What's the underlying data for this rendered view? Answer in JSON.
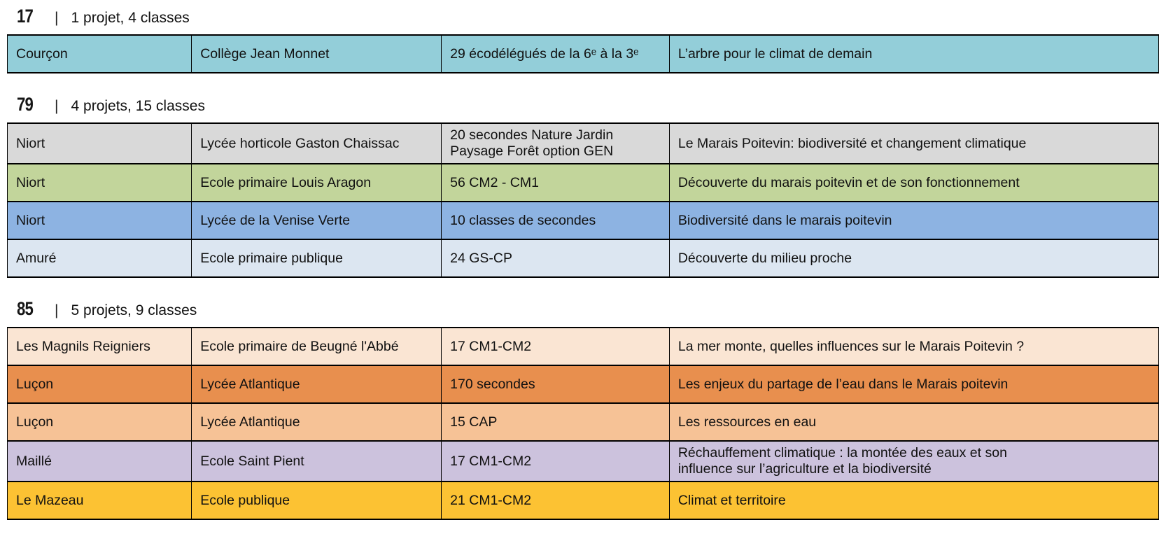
{
  "sections": [
    {
      "department": "17",
      "separator": "|",
      "summary": "1 projet, 4 classes",
      "rows": [
        {
          "commune": "Courçon",
          "school": "Collège Jean Monnet",
          "classes": "29 écodélégués de la 6ᵉ à la 3ᵉ",
          "project": "L’arbre pour le climat de demain",
          "color": "#93ced9"
        }
      ]
    },
    {
      "department": "79",
      "separator": "|",
      "summary": "4 projets, 15 classes",
      "rows": [
        {
          "commune": "Niort",
          "school": "Lycée horticole Gaston Chaissac",
          "classes": "20 secondes Nature Jardin\nPaysage Forêt option GEN",
          "project": "Le Marais Poitevin: biodiversité et changement climatique",
          "color": "#d9d9d9"
        },
        {
          "commune": "Niort",
          "school": "Ecole primaire Louis Aragon",
          "classes": "56 CM2 - CM1",
          "project": "Découverte du marais poitevin et de son fonctionnement",
          "color": "#c2d59b"
        },
        {
          "commune": "Niort",
          "school": "Lycée de la Venise Verte",
          "classes": "10 classes de secondes",
          "project": "Biodiversité dans le marais poitevin",
          "color": "#8db3e2"
        },
        {
          "commune": "Amuré",
          "school": "Ecole primaire publique",
          "classes": "24 GS-CP",
          "project": "Découverte du milieu proche",
          "color": "#dce6f1"
        }
      ]
    },
    {
      "department": "85",
      "separator": "|",
      "summary": "5 projets, 9 classes",
      "rows": [
        {
          "commune": "Les Magnils Reigniers",
          "school": "Ecole primaire de Beugné l'Abbé",
          "classes": "17 CM1-CM2",
          "project": "La mer monte, quelles influences sur le Marais Poitevin ?",
          "color": "#fae5d3"
        },
        {
          "commune": "Luçon",
          "school": "Lycée Atlantique",
          "classes": "170 secondes",
          "project": "Les enjeux du partage de l’eau dans le Marais poitevin",
          "color": "#e88f4e"
        },
        {
          "commune": "Luçon",
          "school": "Lycée Atlantique",
          "classes": "15 CAP",
          "project": "Les ressources en eau",
          "color": "#f6c296"
        },
        {
          "commune": "Maillé",
          "school": "Ecole Saint Pient",
          "classes": "17 CM1-CM2",
          "project": "Réchauffement climatique : la montée des eaux et son\ninfluence sur l’agriculture et la biodiversité",
          "color": "#ccc2dd"
        },
        {
          "commune": "Le Mazeau",
          "school": "Ecole publique",
          "classes": "21 CM1-CM2",
          "project": "Climat et territoire",
          "color": "#fcc233"
        }
      ]
    }
  ]
}
